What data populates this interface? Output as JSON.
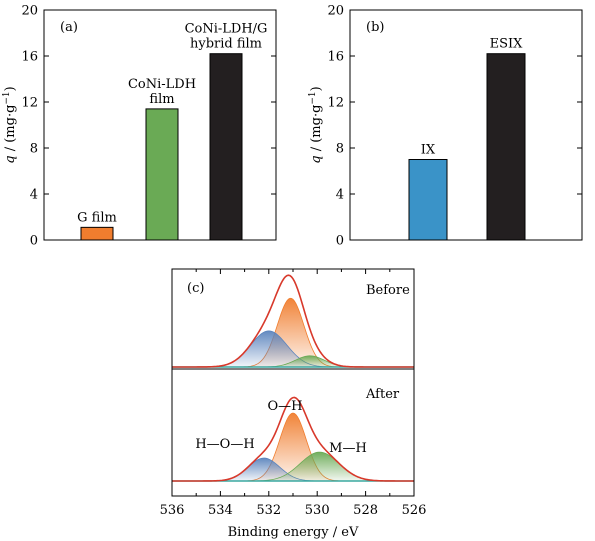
{
  "chart_data": [
    {
      "type": "bar",
      "panel_label": "(a)",
      "categories": [
        "G film",
        "CoNi-LDH film",
        "CoNi-LDH/G hybrid film"
      ],
      "category_label_lines": [
        [
          "G film"
        ],
        [
          "CoNi-LDH",
          "film"
        ],
        [
          "CoNi-LDH/G",
          "hybrid film"
        ]
      ],
      "values": [
        1.1,
        11.4,
        16.2
      ],
      "colors": [
        "#f07d2e",
        "#6aaa55",
        "#231f20"
      ],
      "ylabel": "q / (mg·g⁻¹)",
      "ylabel_main": "q",
      "ylabel_unit": " / (mg·g",
      "ylabel_exp": "−1",
      "ylabel_close": ")",
      "ylim": [
        0,
        20
      ],
      "yticks": [
        "0",
        "4",
        "8",
        "12",
        "16",
        "20"
      ]
    },
    {
      "type": "bar",
      "panel_label": "(b)",
      "categories": [
        "IX",
        "ESIX"
      ],
      "values": [
        7.0,
        16.2
      ],
      "colors": [
        "#3a93c8",
        "#231f20"
      ],
      "ylabel": "q / (mg·g⁻¹)",
      "ylabel_main": "q",
      "ylabel_unit": " / (mg·g",
      "ylabel_exp": "−1",
      "ylabel_close": ")",
      "ylim": [
        0,
        20
      ],
      "yticks": [
        "0",
        "4",
        "8",
        "12",
        "16",
        "20"
      ]
    },
    {
      "type": "line",
      "panel_label": "(c)",
      "xlabel": "Binding energy / eV",
      "xlim": [
        536,
        526
      ],
      "xticks": [
        "536",
        "534",
        "532",
        "530",
        "528",
        "526"
      ],
      "subpanels": [
        {
          "label": "Before",
          "envelope_color": "#d8392b",
          "baseline_color": "#3aa8a0",
          "peaks": [
            {
              "center": 531.1,
              "height": 0.8,
              "sigma": 0.55,
              "color": "#f07d2e"
            },
            {
              "center": 532.0,
              "height": 0.42,
              "sigma": 0.75,
              "color": "#5b84bd"
            },
            {
              "center": 530.3,
              "height": 0.13,
              "sigma": 0.6,
              "color": "#6aaa55"
            }
          ]
        },
        {
          "label": "After",
          "envelope_color": "#d8392b",
          "baseline_color": "#3aa8a0",
          "peaks": [
            {
              "center": 531.0,
              "height": 0.8,
              "sigma": 0.55,
              "color": "#f07d2e",
              "name": "O—H"
            },
            {
              "center": 532.2,
              "height": 0.27,
              "sigma": 0.65,
              "color": "#5b84bd",
              "name": "H—O—H"
            },
            {
              "center": 529.9,
              "height": 0.34,
              "sigma": 0.8,
              "color": "#6aaa55",
              "name": "M—H"
            }
          ]
        }
      ]
    }
  ]
}
